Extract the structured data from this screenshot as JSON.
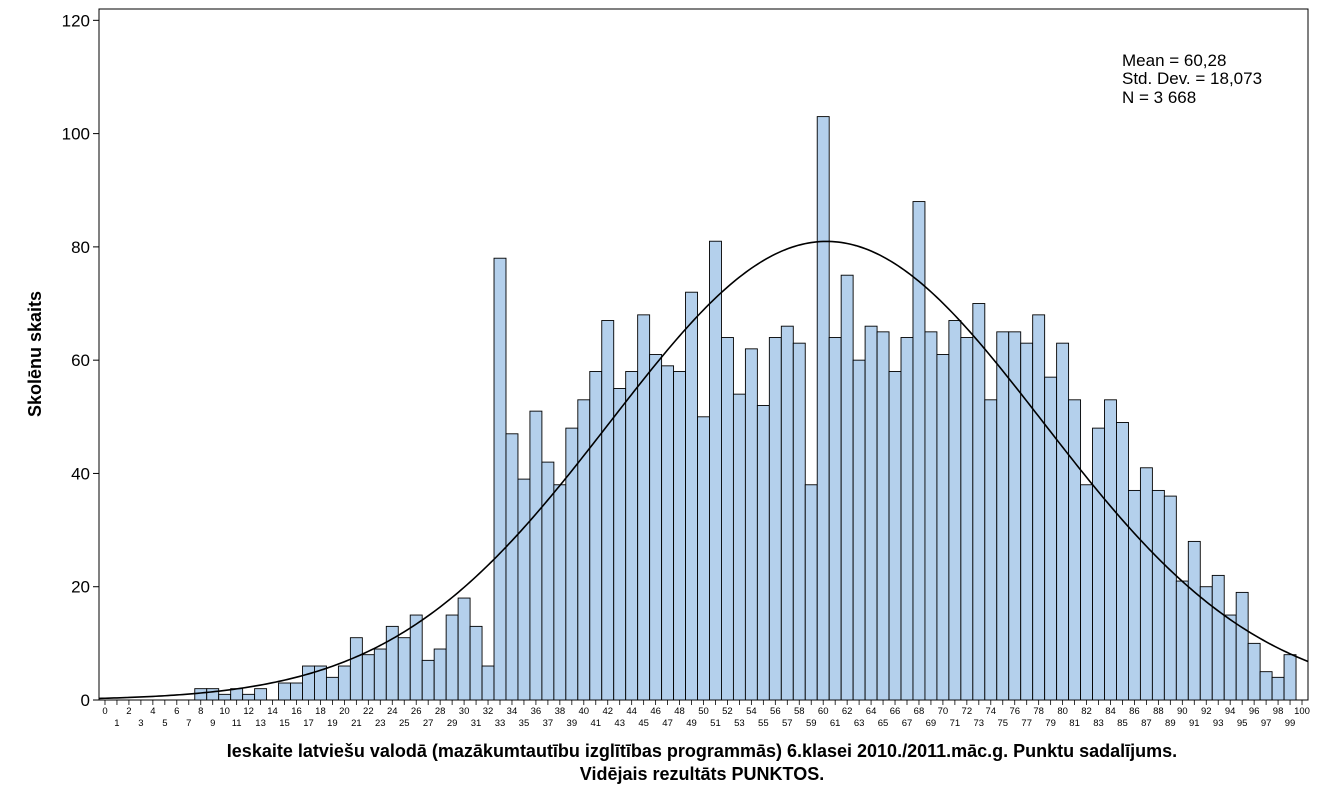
{
  "chart_data": {
    "type": "bar",
    "title": "",
    "xlabel_line1": "Ieskaite latviešu valodā (mazākumtautību izglītības programmās) 6.klasei 2010./2011.māc.g. Punktu sadalījums.",
    "xlabel_line2": "Vidējais rezultāts PUNKTOS.",
    "ylabel": "Skolēnu skaits",
    "ylim": [
      0,
      122
    ],
    "yticks": [
      0,
      20,
      40,
      60,
      80,
      100,
      120
    ],
    "categories": [
      "0",
      "1",
      "2",
      "3",
      "4",
      "5",
      "6",
      "7",
      "8",
      "9",
      "10",
      "11",
      "12",
      "13",
      "14",
      "15",
      "16",
      "17",
      "18",
      "19",
      "20",
      "21",
      "22",
      "23",
      "24",
      "25",
      "26",
      "27",
      "28",
      "29",
      "30",
      "31",
      "32",
      "33",
      "34",
      "35",
      "36",
      "37",
      "38",
      "39",
      "40",
      "41",
      "42",
      "43",
      "44",
      "45",
      "46",
      "47",
      "48",
      "49",
      "50",
      "51",
      "52",
      "53",
      "54",
      "55",
      "56",
      "57",
      "58",
      "59",
      "60",
      "61",
      "62",
      "63",
      "64",
      "65",
      "66",
      "67",
      "68",
      "69",
      "70",
      "71",
      "72",
      "73",
      "74",
      "75",
      "76",
      "77",
      "78",
      "79",
      "80",
      "81",
      "82",
      "83",
      "84",
      "85",
      "86",
      "87",
      "88",
      "89",
      "90",
      "91",
      "92",
      "93",
      "94",
      "95",
      "96",
      "97",
      "98",
      "99",
      "100"
    ],
    "values": [
      0,
      0,
      0,
      0,
      0,
      0,
      0,
      0,
      2,
      2,
      1,
      2,
      1,
      2,
      0,
      3,
      3,
      6,
      6,
      4,
      6,
      11,
      8,
      9,
      13,
      11,
      15,
      7,
      9,
      15,
      18,
      13,
      6,
      78,
      47,
      39,
      51,
      42,
      38,
      48,
      53,
      58,
      67,
      55,
      58,
      68,
      61,
      59,
      58,
      72,
      50,
      81,
      64,
      54,
      62,
      52,
      64,
      66,
      63,
      38,
      103,
      64,
      75,
      60,
      66,
      65,
      58,
      64,
      88,
      65,
      61,
      67,
      64,
      70,
      53,
      65,
      65,
      63,
      68,
      57,
      63,
      53,
      38,
      48,
      53,
      49,
      37,
      41,
      37,
      36,
      21,
      28,
      20,
      22,
      15,
      19,
      10,
      5,
      4,
      8,
      0
    ],
    "normal_curve": {
      "mean": 60.28,
      "std": 18.073,
      "n": 3668
    },
    "stats": {
      "mean": "Mean = 60,28",
      "std": "Std. Dev. = 18,073",
      "n": "N = 3 668"
    },
    "colors": {
      "bar_fill": "#B4D0EC",
      "bar_stroke": "#000000",
      "curve": "#000000"
    }
  }
}
